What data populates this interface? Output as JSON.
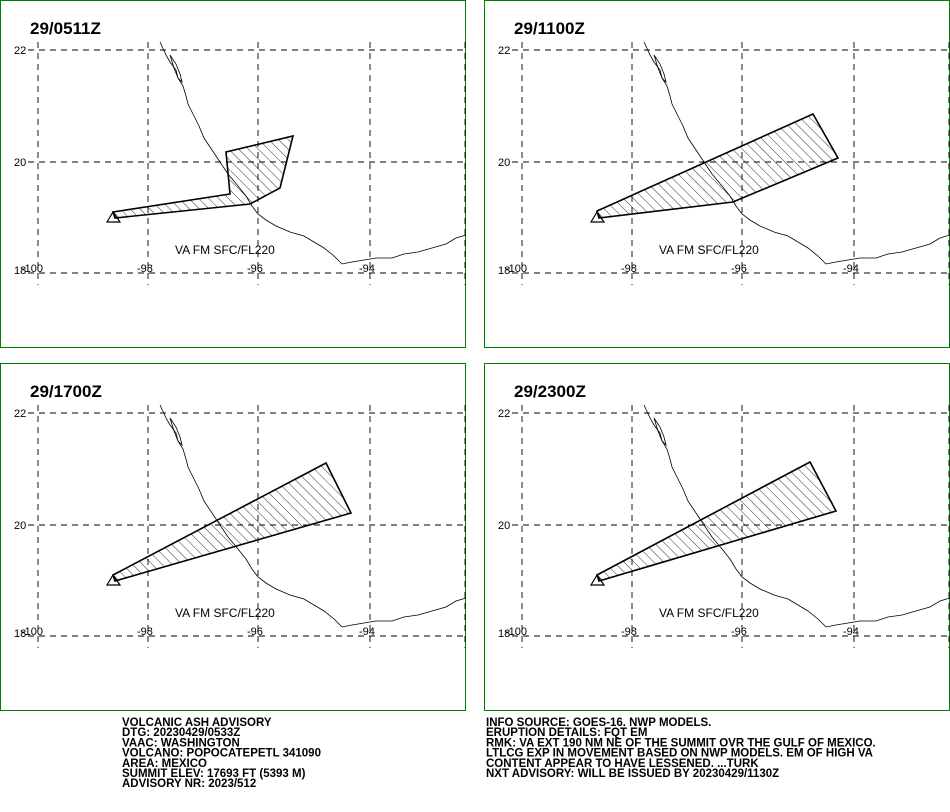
{
  "panels": [
    {
      "time": "29/0511Z",
      "level": "VA FM SFC/FL220"
    },
    {
      "time": "29/1100Z",
      "level": "VA FM SFC/FL220"
    },
    {
      "time": "29/1700Z",
      "level": "VA FM SFC/FL220"
    },
    {
      "time": "29/2300Z",
      "level": "VA FM SFC/FL220"
    }
  ],
  "lat_labels": [
    "22",
    "20",
    "18"
  ],
  "lon_labels": [
    "-100",
    "-98",
    "-96",
    "-94"
  ],
  "advisory_left": [
    "VOLCANIC ASH ADVISORY",
    "DTG: 20230429/0533Z",
    "VAAC: WASHINGTON",
    "VOLCANO: POPOCATEPETL 341090",
    "AREA: MEXICO",
    "SUMMIT ELEV: 17693 FT (5393 M)",
    "ADVISORY NR: 2023/512"
  ],
  "advisory_right": [
    "INFO SOURCE: GOES-16. NWP MODELS.",
    "ERUPTION DETAILS: FQT EM",
    "RMK: VA EXT 190 NM NE OF THE SUMMIT OVR THE GULF OF MEXICO.",
    "LTLCG EXP IN MOVEMENT BASED ON NWP MODELS. EM OF HIGH VA",
    "CONTENT APPEAR TO HAVE LESSENED. ...TURK",
    "NXT ADVISORY: WILL BE ISSUED BY 20230429/1130Z"
  ]
}
